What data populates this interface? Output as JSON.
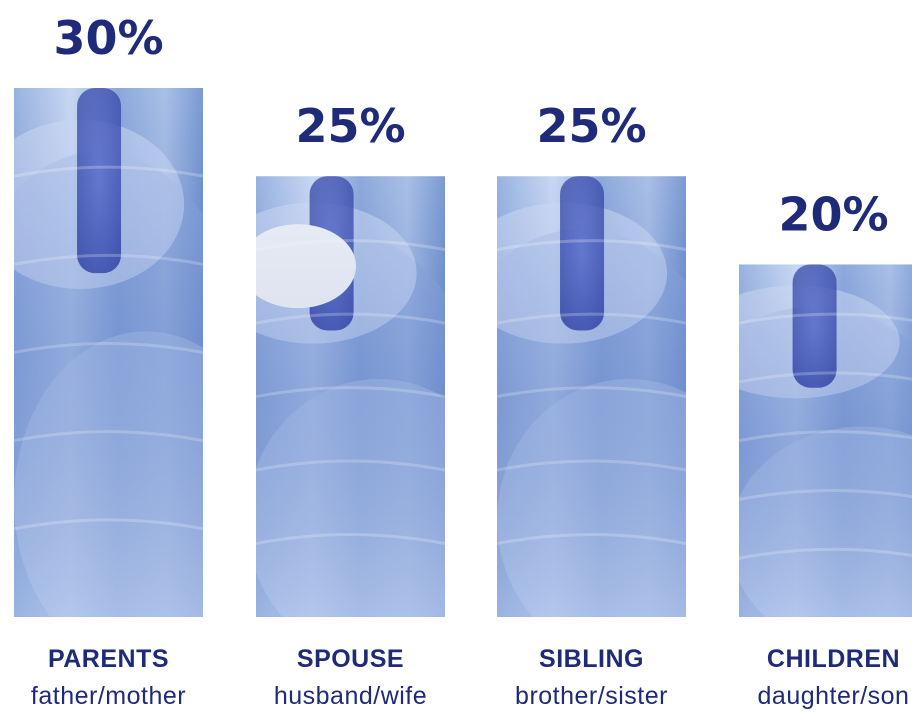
{
  "colors": {
    "label": "#1f2a78",
    "bar_light": "#b7cbef",
    "bar_mid": "#6f93d2",
    "bar_dark": "#2a3fa8",
    "cap": "#e9eef6"
  },
  "chart_data": {
    "type": "bar",
    "categories": [
      "PARENTS",
      "SPOUSE",
      "SIBLING",
      "CHILDREN"
    ],
    "subcategories": [
      "father/mother",
      "husband/wife",
      "brother/sister",
      "daughter/son"
    ],
    "values": [
      30,
      25,
      25,
      20
    ],
    "value_labels": [
      "30%",
      "25%",
      "25%",
      "20%"
    ],
    "ylim": [
      0,
      30
    ],
    "grid": false,
    "legend": "none"
  }
}
